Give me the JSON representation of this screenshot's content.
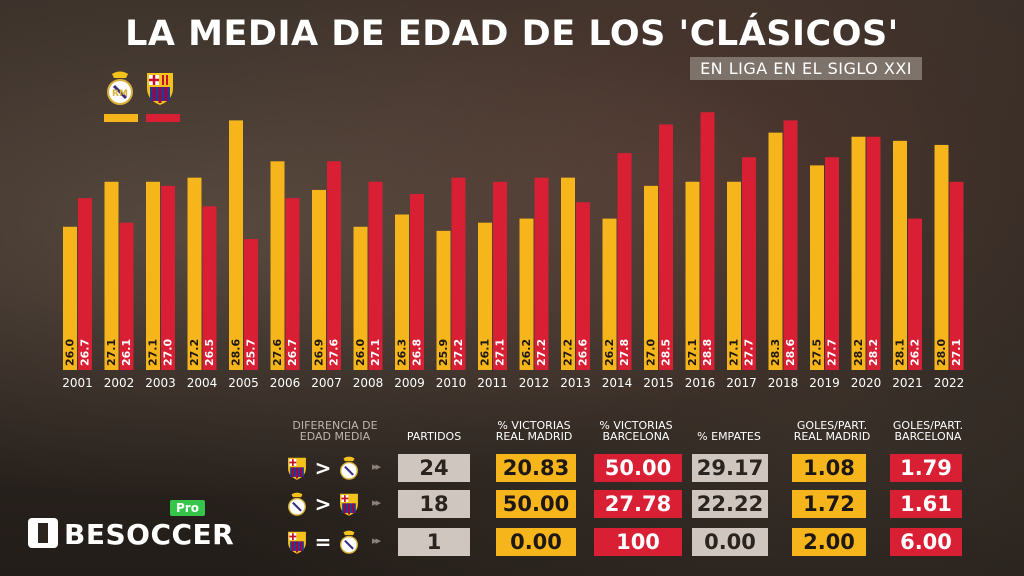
{
  "header": {
    "title": "LA MEDIA DE EDAD DE LOS 'CLÁSICOS'",
    "subtitle": "EN LIGA EN EL SIGLO XXI"
  },
  "colors": {
    "real_madrid": "#f5b51b",
    "barcelona": "#d81f34",
    "gray": "#cfc7bf"
  },
  "legend": [
    {
      "crest": "real-madrid-crest-icon",
      "color": "#f5b51b"
    },
    {
      "crest": "barcelona-crest-icon",
      "color": "#d81f34"
    }
  ],
  "chart_data": {
    "type": "bar",
    "title": "LA MEDIA DE EDAD DE LOS 'CLÁSICOS'",
    "subtitle": "EN LIGA EN EL SIGLO XXI",
    "categories": [
      "2001",
      "2002",
      "2003",
      "2004",
      "2005",
      "2006",
      "2007",
      "2008",
      "2009",
      "2010",
      "2011",
      "2012",
      "2013",
      "2014",
      "2015",
      "2016",
      "2017",
      "2018",
      "2019",
      "2020",
      "2021",
      "2022"
    ],
    "series": [
      {
        "name": "",
        "color": "#f5b51b",
        "values": [
          26.0,
          27.1,
          27.1,
          27.2,
          28.6,
          27.6,
          26.9,
          26.0,
          26.3,
          25.9,
          26.1,
          26.2,
          27.2,
          26.2,
          27.0,
          27.1,
          27.1,
          28.3,
          27.5,
          28.2,
          28.1,
          28.0
        ],
        "labels": [
          "26.0",
          "27.1",
          "27.1",
          "27.2",
          "28.6",
          "27.6",
          "26.9",
          "26.0",
          "26.3",
          "25.9",
          "26.1",
          "26.2",
          "27.2",
          "26.2",
          "27.0",
          "27.1",
          "27.1",
          "28.3",
          "27.5",
          "28.2",
          "28.1",
          "28.0"
        ]
      },
      {
        "name": "",
        "color": "#d81f34",
        "values": [
          26.7,
          26.1,
          27.0,
          26.5,
          25.7,
          26.7,
          27.6,
          27.1,
          26.8,
          27.2,
          27.1,
          27.2,
          26.6,
          27.8,
          28.5,
          28.8,
          27.7,
          28.6,
          27.7,
          28.2,
          26.2,
          27.1
        ],
        "labels": [
          "26.7",
          "26.1",
          "27.0",
          "26.5",
          "25.7",
          "26.7",
          "27.6",
          "27.1",
          "26.8",
          "27.2",
          "27.1",
          "27.2",
          "26.6",
          "27.8",
          "28.5",
          "28.8",
          "27.7",
          "28.6",
          "27.7",
          "28.2",
          "26.2",
          "27.1"
        ]
      }
    ],
    "ylim": [
      22.5,
      29.0
    ],
    "grid": false,
    "legend": "top-left"
  },
  "table": {
    "headers": {
      "diff": [
        "DIFERENCIA DE",
        "EDAD MEDIA"
      ],
      "partidos": [
        "PARTIDOS"
      ],
      "vic_rm": [
        "% VICTORIAS",
        "REAL MADRID"
      ],
      "vic_bar": [
        "% VICTORIAS",
        "BARCELONA"
      ],
      "empates": [
        "% EMPATES"
      ],
      "goles_rm": [
        "GOLES/PART.",
        "REAL MADRID"
      ],
      "goles_bar": [
        "GOLES/PART.",
        "BARCELONA"
      ]
    },
    "rows": [
      {
        "left_crest": "barcelona-crest-icon",
        "operator": ">",
        "right_crest": "real-madrid-crest-icon",
        "partidos": "24",
        "vic_rm": "20.83",
        "vic_bar": "50.00",
        "empates": "29.17",
        "goles_rm": "1.08",
        "goles_bar": "1.79"
      },
      {
        "left_crest": "real-madrid-crest-icon",
        "operator": ">",
        "right_crest": "barcelona-crest-icon",
        "partidos": "18",
        "vic_rm": "50.00",
        "vic_bar": "27.78",
        "empates": "22.22",
        "goles_rm": "1.72",
        "goles_bar": "1.61"
      },
      {
        "left_crest": "barcelona-crest-icon",
        "operator": "=",
        "right_crest": "real-madrid-crest-icon",
        "partidos": "1",
        "vic_rm": "0.00",
        "vic_bar": "100",
        "empates": "0.00",
        "goles_rm": "2.00",
        "goles_bar": "6.00"
      }
    ]
  },
  "brand": {
    "name": "BESOCCER",
    "badge": "Pro"
  }
}
